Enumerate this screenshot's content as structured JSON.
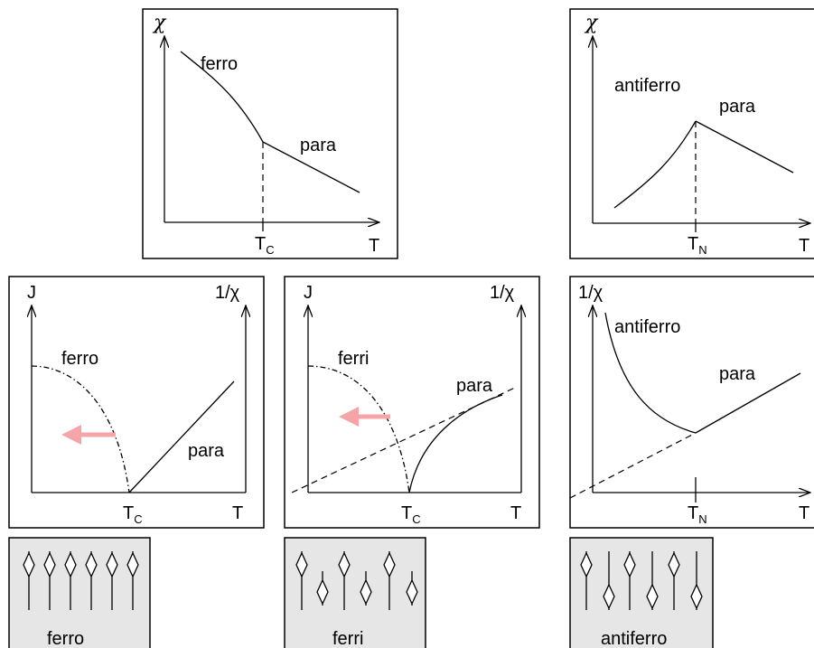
{
  "panels": {
    "ferro_chi": {
      "y_axis": "χ",
      "x_axis": "T",
      "tick": "T",
      "tick_sub": "C",
      "curve_labels": [
        "ferro",
        "para"
      ]
    },
    "antiferro_chi": {
      "y_axis": "χ",
      "x_axis": "T",
      "tick": "T",
      "tick_sub": "N",
      "curve_labels": [
        "antiferro",
        "para"
      ]
    },
    "ferro_inv": {
      "y_axis_left": "J",
      "y_axis_right": "1/χ",
      "x_axis": "T",
      "tick": "T",
      "tick_sub": "C",
      "curve_labels": [
        "ferro",
        "para"
      ],
      "arrow_color": "#f5a5a8"
    },
    "ferri_inv": {
      "y_axis_left": "J",
      "y_axis_right": "1/χ",
      "x_axis": "T",
      "tick": "T",
      "tick_sub": "C",
      "curve_labels": [
        "ferri",
        "para"
      ],
      "arrow_color": "#f5a5a8"
    },
    "antiferro_inv": {
      "y_axis": "1/χ",
      "x_axis": "T",
      "tick": "T",
      "tick_sub": "N",
      "curve_labels": [
        "antiferro",
        "para"
      ]
    }
  },
  "spin_boxes": {
    "ferro": {
      "label": "ferro"
    },
    "ferri": {
      "label": "ferri"
    },
    "antiferro": {
      "label": "antiferro"
    }
  }
}
